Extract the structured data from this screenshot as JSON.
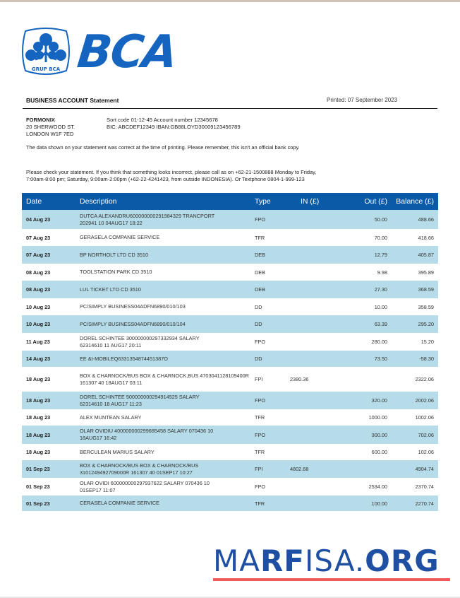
{
  "brand": {
    "name": "BCA",
    "emblem_caption": "GRUP BCA",
    "color": "#1565c0"
  },
  "header": {
    "title": "BUSINESS ACCOUNT Statement",
    "printed": "Printed: 07 September 2023"
  },
  "customer": {
    "name": "FORMONIX",
    "address_line1": "20 SHERWOOD ST.",
    "address_line2": "LONDON W1F 7ED"
  },
  "account": {
    "line1": "Sort code 01-12-45   Account number 12345678",
    "line2": "BIC: ABCDEF12349   IBAN:GB88LOYD30009123456789"
  },
  "notices": {
    "accuracy": "The data shown on your statement was correct at the time of printing. Please remember, this isn't an official bank copy.",
    "contact": "Please check your statement. If you think that something looks incorrect, please call as on +62-21-1500888 Monday to Friday, 7:00am-8:00 pm; Saturday, 9:00am-2:00pm (+62-22-4241423, from outside INDONESIA). Or Textphone 0804-1-999-123"
  },
  "table": {
    "columns": [
      "Date",
      "Description",
      "Type",
      "IN (£)",
      "Out (£)",
      "Balance (£)"
    ],
    "header_color": "#0a5aa8",
    "alt_row_color": "#b5dce8",
    "rows": [
      {
        "date": "04 Aug 23",
        "desc1": "DUTCA ALEXANDRU600000000291984329 TRANCPORT",
        "desc2": "202941 10 04AUG17 18:22",
        "type": "FPO",
        "in": "",
        "out": "50.00",
        "balance": "488.66"
      },
      {
        "date": "07 Aug 23",
        "desc1": "GERASELA COMPANIE SERVICE",
        "desc2": "",
        "type": "TFR",
        "in": "",
        "out": "70.00",
        "balance": "418.66"
      },
      {
        "date": "07 Aug 23",
        "desc1": "BP NORTHOLT LTD CD 3510",
        "desc2": "",
        "type": "DEB",
        "in": "",
        "out": "12.79",
        "balance": "405.87"
      },
      {
        "date": "08 Aug 23",
        "desc1": "TOOLSTATION PARK CD 3510",
        "desc2": "",
        "type": "DEB",
        "in": "",
        "out": "9.98",
        "balance": "395.89"
      },
      {
        "date": "08 Aug 23",
        "desc1": "LUL TICKET LTD CD 3510",
        "desc2": "",
        "type": "DEB",
        "in": "",
        "out": "27.30",
        "balance": "368.59"
      },
      {
        "date": "10 Aug 23",
        "desc1": "PC/SIMPLY BUSINESS04ADFN6890/010/103",
        "desc2": "",
        "type": "DD",
        "in": "",
        "out": "10.00",
        "balance": "358.59"
      },
      {
        "date": "10 Aug 23",
        "desc1": "PC/SIMPLY BUSINESS04ADFN6890/010/104",
        "desc2": "",
        "type": "DD",
        "in": "",
        "out": "63.39",
        "balance": "295.20"
      },
      {
        "date": "11 Aug 23",
        "desc1": "DOREL SCHINTEE 300000000297332934 SALARY",
        "desc2": "62314610 11 AUG17 20:11",
        "type": "FPO",
        "in": "",
        "out": "280.00",
        "balance": "15.20"
      },
      {
        "date": "14 Aug 23",
        "desc1": "EE &t-MOBILEQ6331354874451387O",
        "desc2": "",
        "type": "DD",
        "in": "",
        "out": "73.50",
        "balance": "-58.30"
      },
      {
        "date": "18 Aug 23",
        "desc1": "BOX & CHARNOCK/BUS BOX & CHARNOCK,BUS 4703041128109400R",
        "desc2": "161307 40 18AUG17 03:11",
        "type": "FPI",
        "in": "2380.36",
        "out": "",
        "balance": "2322.06"
      },
      {
        "date": "18 Aug 23",
        "desc1": "DOREL SCHINTEE 500000000294914525 SALARY",
        "desc2": "62314610 18 AUG17 11:23",
        "type": "FPO",
        "in": "",
        "out": "320.00",
        "balance": "2002.06"
      },
      {
        "date": "18 Aug 23",
        "desc1": "ALEX MUNTEAN SALARY",
        "desc2": "",
        "type": "TFR",
        "in": "",
        "out": "1000.00",
        "balance": "1002.06"
      },
      {
        "date": "18 Aug 23",
        "desc1": "OLAR OVIDIU 400000000299685458 SALARY 070436 10",
        "desc2": "18AUG17 16:42",
        "type": "FPO",
        "in": "",
        "out": "300.00",
        "balance": "702.06"
      },
      {
        "date": "18 Aug 23",
        "desc1": "BERCULEAN MARIUS SALARY",
        "desc2": "",
        "type": "TFR",
        "in": "",
        "out": "600.00",
        "balance": "102.06"
      },
      {
        "date": "01 Sep 23",
        "desc1": "BOX & CHARNOCK/BUS BOX & CHARNOCK/BUS",
        "desc2": "3101249492709000R 161307 40 01SEP17 10:27",
        "type": "FPI",
        "in": "4802.68",
        "out": "",
        "balance": "4904.74"
      },
      {
        "date": "01 Sep 23",
        "desc1": "OLAR OVIDI 600000000297937622 SALARY 070436 10",
        "desc2": "01SEP17 11:07",
        "type": "FPO",
        "in": "",
        "out": "2534.00",
        "balance": "2370.74"
      },
      {
        "date": "01 Sep 23",
        "desc1": "CERASELA COMPANIE SERVICE",
        "desc2": "",
        "type": "TFR",
        "in": "",
        "out": "100.00",
        "balance": "2270.74"
      }
    ]
  },
  "watermark": {
    "part1": "MA",
    "part2": "RF",
    "part3": "ISA.",
    "part4": "ORG",
    "text_color": "#1f4fa3",
    "underline_color": "#f05a5a"
  }
}
